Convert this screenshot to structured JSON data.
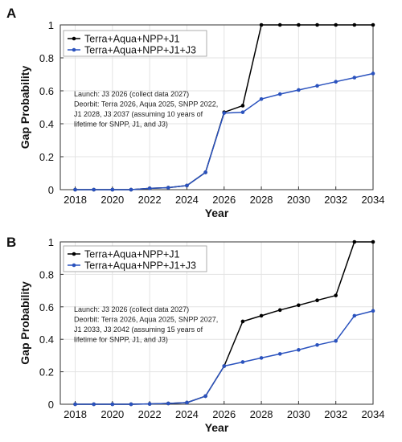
{
  "chart_data": [
    {
      "type": "line",
      "panel_label": "A",
      "xlabel": "Year",
      "ylabel": "Gap Probability",
      "xlim": [
        2017.2,
        2034
      ],
      "ylim": [
        0,
        1
      ],
      "x_ticks": [
        2018,
        2020,
        2022,
        2024,
        2026,
        2028,
        2030,
        2032,
        2034
      ],
      "y_ticks": [
        0,
        0.2,
        0.4,
        0.6,
        0.8,
        1
      ],
      "y_tick_labels": [
        "0",
        "0.2",
        "0.4",
        "0.6",
        "0.8",
        "1"
      ],
      "grid": true,
      "legend_position": "top-left",
      "annotation": [
        "Launch: J3 2026 (collect data 2027)",
        "Deorbit: Terra 2026, Aqua 2025, SNPP 2022,",
        "J1 2028, J3 2037 (assuming 10 years of",
        "lifetime for SNPP, J1, and J3)"
      ],
      "x": [
        2018,
        2019,
        2020,
        2021,
        2022,
        2023,
        2024,
        2025,
        2026,
        2027,
        2028,
        2029,
        2030,
        2031,
        2032,
        2033,
        2034
      ],
      "series": [
        {
          "name": "Terra+Aqua+NPP+J1",
          "color": "#000000",
          "values": [
            0,
            0,
            0,
            0,
            0.008,
            0.012,
            0.025,
            0.105,
            0.47,
            0.51,
            1,
            1,
            1,
            1,
            1,
            1,
            1
          ]
        },
        {
          "name": "Terra+Aqua+NPP+J1+J3",
          "color": "#2a52be",
          "values": [
            0,
            0,
            0,
            0,
            0.008,
            0.012,
            0.025,
            0.105,
            0.465,
            0.47,
            0.55,
            0.58,
            0.605,
            0.63,
            0.655,
            0.68,
            0.705
          ]
        }
      ]
    },
    {
      "type": "line",
      "panel_label": "B",
      "xlabel": "Year",
      "ylabel": "Gap Probability",
      "xlim": [
        2017.2,
        2034
      ],
      "ylim": [
        0,
        1
      ],
      "x_ticks": [
        2018,
        2020,
        2022,
        2024,
        2026,
        2028,
        2030,
        2032,
        2034
      ],
      "y_ticks": [
        0,
        0.2,
        0.4,
        0.6,
        0.8,
        1
      ],
      "y_tick_labels": [
        "0",
        "0.2",
        "0.4",
        "0.6",
        "0.8",
        "1"
      ],
      "grid": true,
      "legend_position": "top-left",
      "annotation": [
        "Launch: J3 2026 (collect data 2027)",
        "Deorbit: Terra 2026, Aqua 2025, SNPP 2027,",
        "J1 2033, J3 2042 (assuming 15 years of",
        "lifetime for SNPP, J1, and J3)"
      ],
      "x": [
        2018,
        2019,
        2020,
        2021,
        2022,
        2023,
        2024,
        2025,
        2026,
        2027,
        2028,
        2029,
        2030,
        2031,
        2032,
        2033,
        2034
      ],
      "series": [
        {
          "name": "Terra+Aqua+NPP+J1",
          "color": "#000000",
          "values": [
            0,
            0,
            0,
            0,
            0.002,
            0.005,
            0.01,
            0.05,
            0.235,
            0.51,
            0.545,
            0.58,
            0.61,
            0.64,
            0.67,
            1,
            1
          ]
        },
        {
          "name": "Terra+Aqua+NPP+J1+J3",
          "color": "#2a52be",
          "values": [
            0,
            0,
            0,
            0,
            0.002,
            0.005,
            0.01,
            0.05,
            0.235,
            0.26,
            0.285,
            0.31,
            0.335,
            0.365,
            0.39,
            0.545,
            0.575
          ]
        }
      ]
    }
  ]
}
